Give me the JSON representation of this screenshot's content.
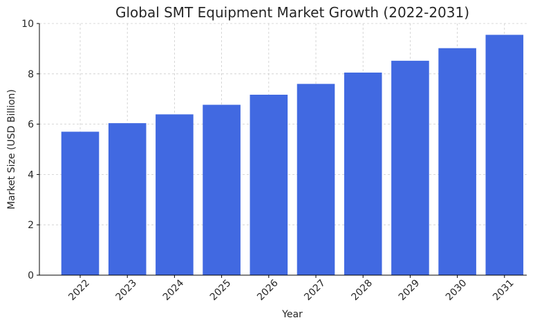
{
  "chart_data": {
    "type": "bar",
    "title": "Global SMT Equipment Market Growth (2022-2031)",
    "xlabel": "Year",
    "ylabel": "Market Size (USD Billion)",
    "categories": [
      "2022",
      "2023",
      "2024",
      "2025",
      "2026",
      "2027",
      "2028",
      "2029",
      "2030",
      "2031"
    ],
    "values": [
      5.7,
      6.04,
      6.39,
      6.77,
      7.17,
      7.6,
      8.05,
      8.52,
      9.02,
      9.55
    ],
    "ylim": [
      0,
      10
    ],
    "yticks": [
      0,
      2,
      4,
      6,
      8,
      10
    ],
    "bar_color": "#4169e1",
    "grid": true
  }
}
